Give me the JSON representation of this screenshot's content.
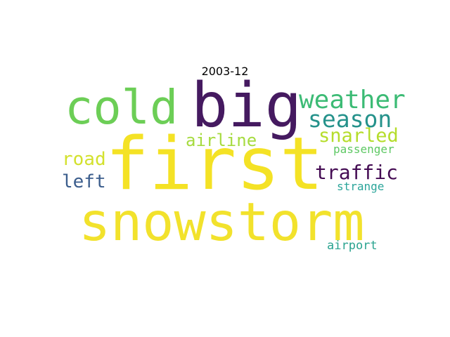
{
  "title": "2003-12",
  "words": [
    {
      "text": "first",
      "color": "#f4e225"
    },
    {
      "text": "snowstorm",
      "color": "#f2e22c"
    },
    {
      "text": "big",
      "color": "#451a60"
    },
    {
      "text": "cold",
      "color": "#6cce56"
    },
    {
      "text": "weather",
      "color": "#3cbb75"
    },
    {
      "text": "season",
      "color": "#25928b"
    },
    {
      "text": "snarled",
      "color": "#b5dd2b"
    },
    {
      "text": "airline",
      "color": "#a6db3f"
    },
    {
      "text": "road",
      "color": "#d3e12e"
    },
    {
      "text": "traffic",
      "color": "#440b53"
    },
    {
      "text": "left",
      "color": "#3b5d8c"
    },
    {
      "text": "passenger",
      "color": "#5dc863"
    },
    {
      "text": "strange",
      "color": "#2ba59a"
    },
    {
      "text": "airport",
      "color": "#29a38f"
    }
  ]
}
